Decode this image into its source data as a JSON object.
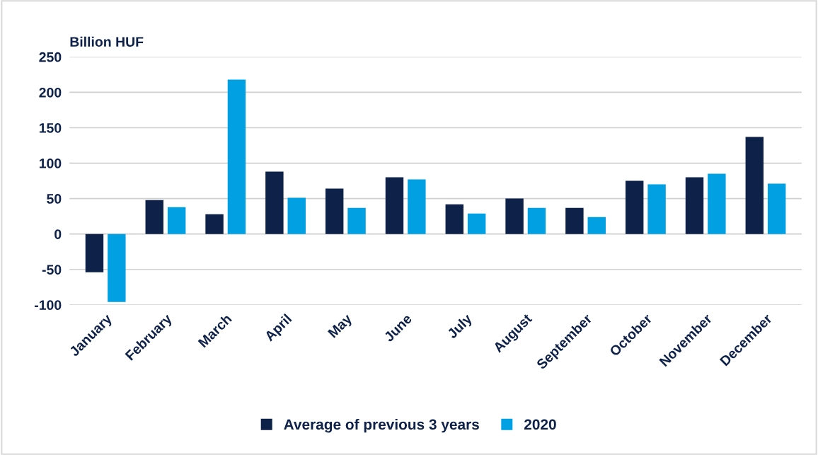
{
  "chart_data": {
    "type": "bar",
    "ylabel": "Billion HUF",
    "categories": [
      "January",
      "February",
      "March",
      "April",
      "May",
      "June",
      "July",
      "August",
      "September",
      "October",
      "November",
      "December"
    ],
    "series": [
      {
        "name": "Average of previous 3 years",
        "color": "#0e2148",
        "values": [
          -54,
          48,
          28,
          88,
          64,
          80,
          42,
          50,
          37,
          75,
          80,
          137
        ]
      },
      {
        "name": "2020",
        "color": "#00a0e3",
        "values": [
          -96,
          38,
          218,
          51,
          37,
          77,
          29,
          37,
          24,
          70,
          85,
          71
        ]
      }
    ],
    "ylim": [
      -100,
      250
    ],
    "yticks": [
      -100,
      -50,
      0,
      50,
      100,
      150,
      200,
      250
    ],
    "grid": "y",
    "legend": "bottom"
  }
}
